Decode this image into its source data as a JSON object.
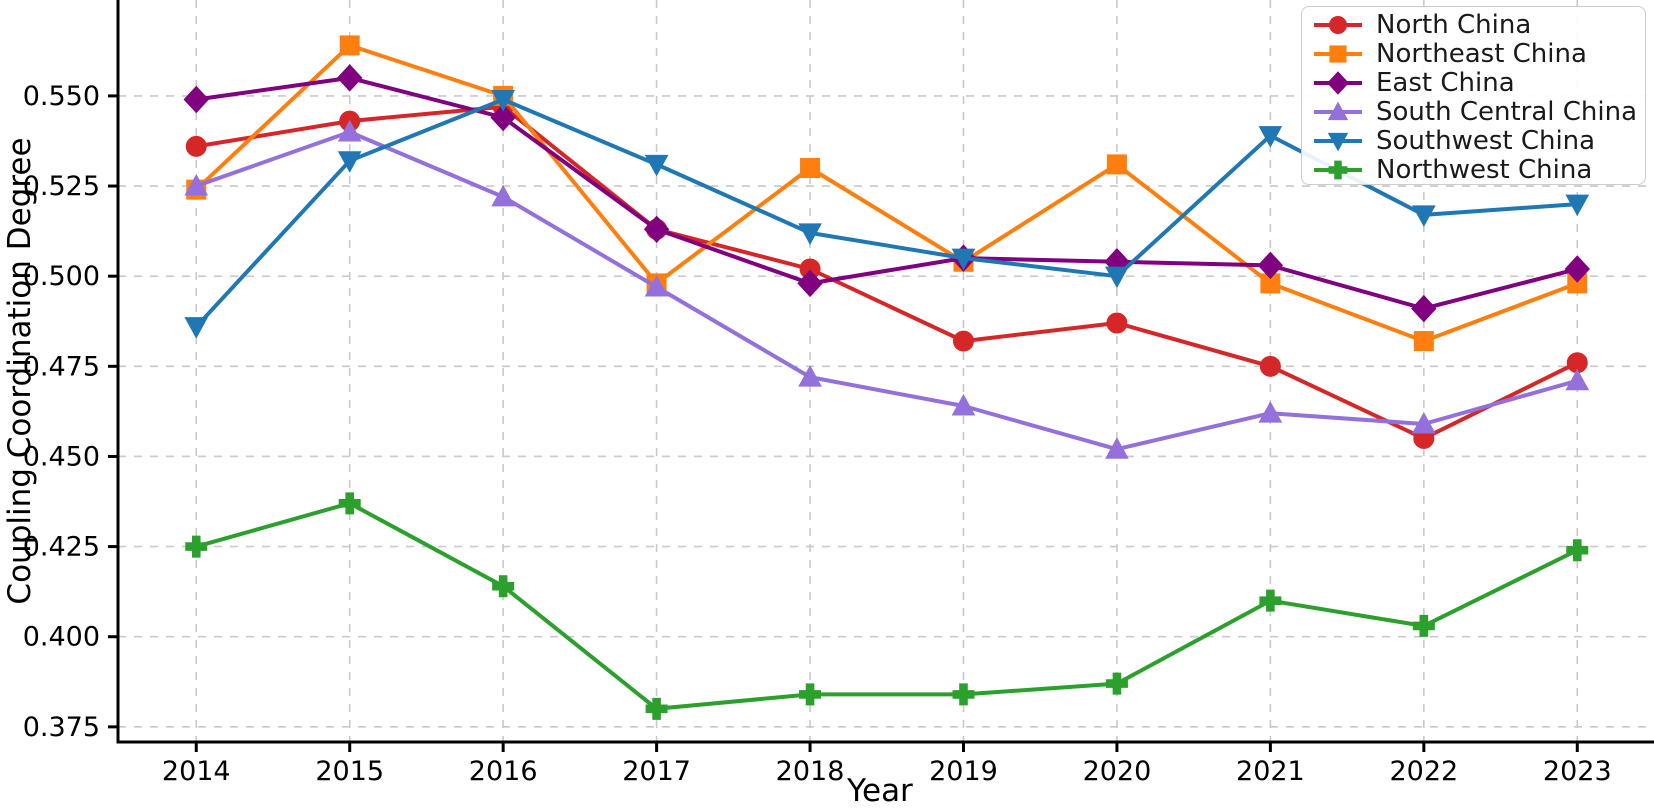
{
  "figure": {
    "xlabel": "Year",
    "ylabel": "Coupling Coordination Degree"
  },
  "chart_data": {
    "type": "line",
    "title": "",
    "xlabel": "Year",
    "ylabel": "Coupling Coordination Degree",
    "x": [
      2014,
      2015,
      2016,
      2017,
      2018,
      2019,
      2020,
      2021,
      2022,
      2023
    ],
    "yticks": [
      0.375,
      0.4,
      0.425,
      0.45,
      0.475,
      0.5,
      0.525,
      0.55
    ],
    "xlim": [
      2013.49,
      2023.5
    ],
    "ylim": [
      0.3708,
      0.5766
    ],
    "grid": true,
    "grid_style": "dashed",
    "grid_color": "#c9c9c9",
    "axis_color": "#000000",
    "legend_position": "upper right",
    "series": [
      {
        "name": "North China",
        "color": "#d62728",
        "marker": "circle",
        "values": [
          0.536,
          0.543,
          0.547,
          0.513,
          0.502,
          0.482,
          0.487,
          0.475,
          0.455,
          0.476
        ]
      },
      {
        "name": "Northeast China",
        "color": "#ff7f0e",
        "marker": "square",
        "values": [
          0.524,
          0.564,
          0.55,
          0.498,
          0.53,
          0.504,
          0.531,
          0.498,
          0.482,
          0.498
        ]
      },
      {
        "name": "East China",
        "color": "#800080",
        "marker": "diamond",
        "values": [
          0.549,
          0.555,
          0.544,
          0.513,
          0.498,
          0.505,
          0.504,
          0.503,
          0.491,
          0.502
        ]
      },
      {
        "name": "South Central China",
        "color": "#9370db",
        "marker": "triangle-up",
        "values": [
          0.525,
          0.54,
          0.522,
          0.497,
          0.472,
          0.464,
          0.452,
          0.462,
          0.459,
          0.471
        ]
      },
      {
        "name": "Southwest China",
        "color": "#1f77b4",
        "marker": "triangle-down",
        "values": [
          0.486,
          0.532,
          0.549,
          0.531,
          0.512,
          0.505,
          0.5,
          0.539,
          0.517,
          0.52
        ]
      },
      {
        "name": "Northwest China",
        "color": "#2ca02c",
        "marker": "plus",
        "values": [
          0.425,
          0.437,
          0.414,
          0.38,
          0.384,
          0.384,
          0.387,
          0.41,
          0.403,
          0.424
        ]
      }
    ]
  }
}
